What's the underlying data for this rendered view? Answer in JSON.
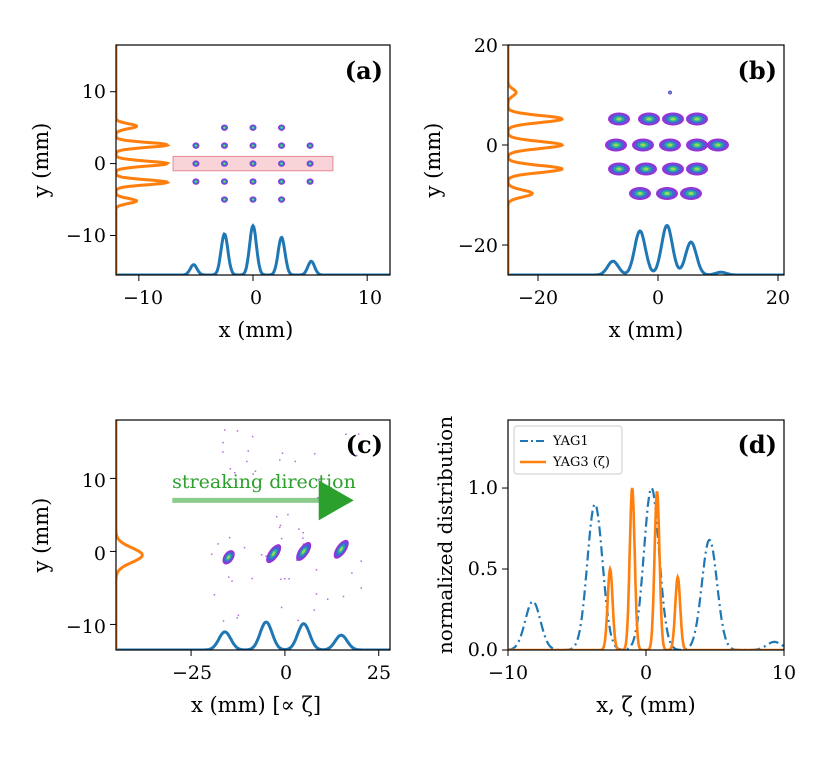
{
  "figure": {
    "colors": {
      "blue": "#1f77b4",
      "orange": "#ff7f0e",
      "green": "#2ca02c",
      "roi_fill": "#f4b6bd",
      "roi_edge": "#e88a96"
    }
  },
  "chart_data": [
    {
      "id": "a",
      "type": "heatmap",
      "panel_label": "(a)",
      "xlabel": "x (mm)",
      "ylabel": "y (mm)",
      "xlim": [
        -12,
        12
      ],
      "ylim": [
        -15.5,
        16.5
      ],
      "xticks": [
        -10,
        0,
        10
      ],
      "xtick_labels": [
        "−10",
        "0",
        "10"
      ],
      "yticks": [
        10,
        0,
        -10
      ],
      "ytick_labels": [
        "10",
        "0",
        "−10"
      ],
      "beamlets": {
        "x": [
          -5,
          -2.5,
          0,
          2.5,
          5
        ],
        "y": [
          5,
          2.5,
          0,
          -2.5,
          -5
        ],
        "size": [
          1.0,
          1.0,
          1.0,
          1.0,
          1.0
        ]
      },
      "roi": {
        "x": [
          -7,
          7
        ],
        "y": [
          -1,
          1
        ]
      },
      "profile_x": {
        "name": "horizontal projection",
        "peaks": [
          -5.2,
          -2.5,
          0,
          2.5,
          5.1
        ],
        "heights": [
          0.15,
          0.6,
          0.72,
          0.55,
          0.2
        ],
        "baseline_y": -15.5,
        "scale_y": 9.5,
        "sigma": 0.3
      },
      "profile_y": {
        "name": "vertical projection",
        "peaks": [
          5.2,
          2.6,
          0,
          -2.6,
          -5.2
        ],
        "heights": [
          0.4,
          1.0,
          1.0,
          1.0,
          0.4
        ],
        "baseline_x": -12,
        "scale_x": 4.5,
        "sigma": 0.35
      }
    },
    {
      "id": "b",
      "type": "heatmap",
      "panel_label": "(b)",
      "xlabel": "x (mm)",
      "ylabel": "y (mm)",
      "xlim": [
        -25,
        21
      ],
      "ylim": [
        -26,
        20
      ],
      "xticks": [
        -20,
        0,
        20
      ],
      "xtick_labels": [
        "−20",
        "0",
        "20"
      ],
      "yticks": [
        20,
        0,
        -20
      ],
      "ytick_labels": [
        "20",
        "0",
        "−20"
      ],
      "beamlets": {
        "x": [
          -6.5,
          -1.5,
          2.0,
          6.0,
          9.5
        ],
        "y": [
          10.5,
          5.0,
          0,
          -4.8,
          -9.5
        ],
        "size": [
          2.0,
          2.2,
          2.3,
          2.2,
          2.0
        ]
      },
      "profile_x": {
        "name": "horizontal projection",
        "peaks": [
          -7.5,
          -3.0,
          1.5,
          5.5,
          10.5
        ],
        "heights": [
          0.25,
          0.8,
          0.9,
          0.6,
          0.05
        ],
        "baseline_y": -26,
        "scale_y": 11,
        "sigma": 0.9
      },
      "profile_y": {
        "name": "vertical projection",
        "peaks": [
          10.5,
          5.2,
          0,
          -4.8,
          -9.7
        ],
        "heights": [
          0.15,
          1.0,
          1.0,
          1.0,
          0.45
        ],
        "baseline_x": -25,
        "scale_x": 9,
        "sigma": 0.7
      }
    },
    {
      "id": "c",
      "type": "heatmap",
      "panel_label": "(c)",
      "xlabel": "x (mm) [∝ ζ]",
      "ylabel": "y (mm)",
      "xlim": [
        -45,
        28
      ],
      "ylim": [
        -13.5,
        18
      ],
      "xticks": [
        -25,
        0,
        25
      ],
      "xtick_labels": [
        "−25",
        "0",
        "25"
      ],
      "yticks": [
        10,
        0,
        -10
      ],
      "ytick_labels": [
        "10",
        "0",
        "−10"
      ],
      "annotation": "streaking direction",
      "arrow": {
        "x_from": -30,
        "x_to": 17,
        "y": 7
      },
      "streaks": {
        "x": [
          -15,
          -3,
          5,
          15
        ],
        "y": [
          -0.8,
          -0.3,
          0,
          0.3
        ]
      },
      "profile_x": {
        "name": "horizontal projection",
        "peaks": [
          -16,
          -5,
          5,
          15
        ],
        "heights": [
          0.55,
          0.85,
          0.8,
          0.45
        ],
        "baseline_y": -13.5,
        "scale_y": 4.5,
        "sigma": 1.6
      },
      "profile_y": {
        "name": "vertical projection",
        "peaks": [
          -0.5
        ],
        "heights": [
          1.0
        ],
        "baseline_x": -45,
        "scale_x": 7,
        "sigma": 1.0
      }
    },
    {
      "id": "d",
      "type": "line",
      "panel_label": "(d)",
      "xlabel": "x, ζ (mm)",
      "ylabel": "normalized distribution",
      "xlim": [
        -10,
        10
      ],
      "ylim": [
        0,
        1.42
      ],
      "xticks": [
        -10,
        0,
        10
      ],
      "xtick_labels": [
        "−10",
        "0",
        "10"
      ],
      "yticks": [
        0,
        0.5,
        1.0
      ],
      "ytick_labels": [
        "0.0",
        "0.5",
        "1.0"
      ],
      "series": [
        {
          "name": "YAG1",
          "style": "dashdot",
          "peaks": [
            -8.2,
            -3.7,
            0.4,
            4.6,
            9.3
          ],
          "heights": [
            0.3,
            0.9,
            1.0,
            0.68,
            0.05
          ],
          "sigma": 0.55
        },
        {
          "name": "YAG3 (ζ)",
          "style": "solid",
          "peaks": [
            -2.6,
            -1.0,
            0.8,
            2.3
          ],
          "heights": [
            0.5,
            1.0,
            0.98,
            0.45
          ],
          "sigma": 0.18
        }
      ],
      "legend": {
        "position": "top-left",
        "entries": [
          "YAG1",
          "YAG3 (ζ)"
        ]
      }
    }
  ]
}
